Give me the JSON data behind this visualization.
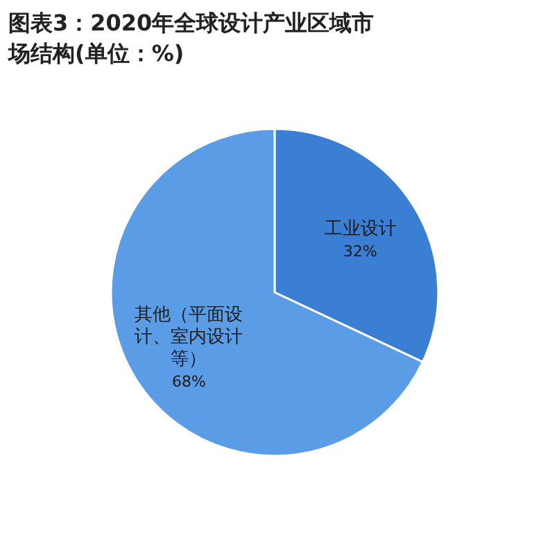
{
  "chart_data": {
    "type": "pie",
    "title": "图表3：2020年全球设计产业区域市场结构(单位：%)",
    "categories": [
      "工业设计",
      "其他（平面设计、室内设计等）"
    ],
    "values": [
      32,
      68
    ],
    "value_labels": [
      "32%",
      "68%"
    ],
    "colors": [
      "#3b7fd4",
      "#5b9ce6"
    ]
  }
}
